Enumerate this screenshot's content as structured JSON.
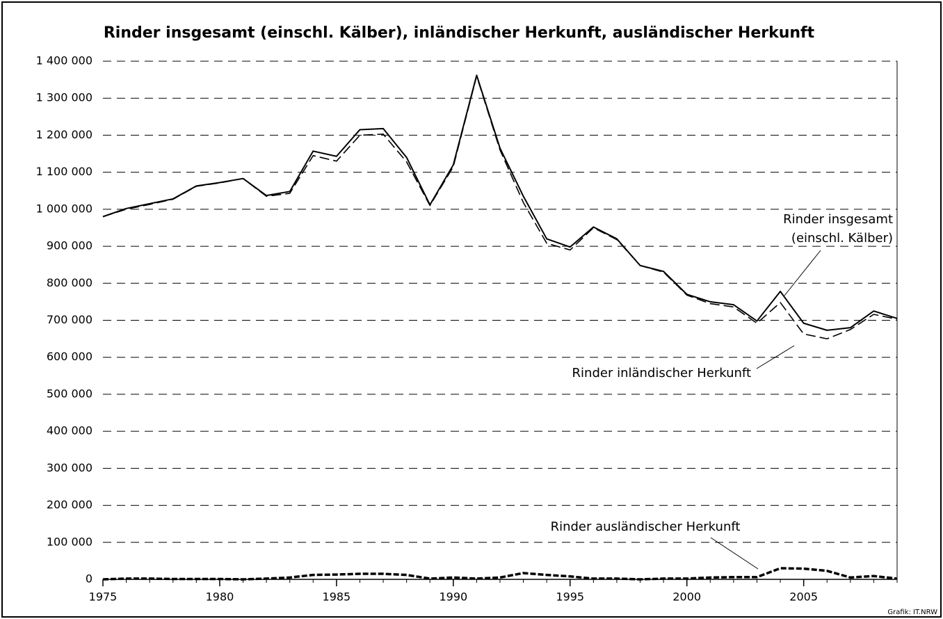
{
  "chart_data": {
    "type": "line",
    "title": "Rinder insgesamt (einschl. Kälber), inländischer Herkunft, ausländischer Herkunft",
    "x": [
      1975,
      1976,
      1977,
      1978,
      1979,
      1980,
      1981,
      1982,
      1983,
      1984,
      1985,
      1986,
      1987,
      1988,
      1989,
      1990,
      1991,
      1992,
      1993,
      1994,
      1995,
      1996,
      1997,
      1998,
      1999,
      2000,
      2001,
      2002,
      2003,
      2004,
      2005,
      2006,
      2007,
      2008,
      2009
    ],
    "series": [
      {
        "label": [
          "Rinder insgesamt",
          "(einschl. Kälber)"
        ],
        "color": "#000000",
        "style": "solid",
        "values": [
          980000,
          1002000,
          1015000,
          1028000,
          1063000,
          1072000,
          1083000,
          1037000,
          1048000,
          1157000,
          1143000,
          1215000,
          1218000,
          1140000,
          1012000,
          1120000,
          1362000,
          1165000,
          1035000,
          920000,
          898000,
          952000,
          920000,
          848000,
          832000,
          770000,
          750000,
          742000,
          698000,
          778000,
          692000,
          673000,
          680000,
          725000,
          705000
        ]
      },
      {
        "label": [
          "Rinder inländischer Herkunft"
        ],
        "color": "#000000",
        "style": "dashed",
        "values": [
          980000,
          1000000,
          1013000,
          1027000,
          1062000,
          1071000,
          1083000,
          1035000,
          1043000,
          1145000,
          1130000,
          1200000,
          1203000,
          1128000,
          1010000,
          1115000,
          1360000,
          1160000,
          1018000,
          908000,
          890000,
          950000,
          918000,
          848000,
          830000,
          768000,
          745000,
          736000,
          692000,
          748000,
          663000,
          650000,
          675000,
          716000,
          703000
        ]
      },
      {
        "label": [
          "Rinder ausländischer Herkunft"
        ],
        "color": "#000000",
        "style": "bold-dashed",
        "values": [
          0,
          2000,
          2000,
          1000,
          1000,
          1000,
          0,
          2000,
          5000,
          12000,
          13000,
          15000,
          15000,
          12000,
          2000,
          5000,
          2000,
          5000,
          17000,
          12000,
          8000,
          2000,
          2000,
          0,
          2000,
          2000,
          5000,
          6000,
          6000,
          30000,
          29000,
          23000,
          5000,
          9000,
          2000
        ]
      }
    ],
    "xlim": [
      1975,
      2009
    ],
    "xticks": [
      1975,
      1980,
      1985,
      1990,
      1995,
      2000,
      2005
    ],
    "ylim": [
      0,
      1400000
    ],
    "yticks": [
      0,
      {
        "value": 100000,
        "label": "100 000"
      },
      {
        "value": 200000,
        "label": "200 000"
      },
      {
        "value": 300000,
        "label": "300 000"
      },
      {
        "value": 400000,
        "label": "400 000"
      },
      {
        "value": 500000,
        "label": "500 000"
      },
      {
        "value": 600000,
        "label": "600 000"
      },
      {
        "value": 700000,
        "label": "700 000"
      },
      {
        "value": 800000,
        "label": "800 000"
      },
      {
        "value": 900000,
        "label": "900 000"
      },
      {
        "value": 1000000,
        "label": "1 000 000"
      },
      {
        "value": 1100000,
        "label": "1 100 000"
      },
      {
        "value": 1200000,
        "label": "1 200 000"
      },
      {
        "value": 1300000,
        "label": "1 300 000"
      },
      {
        "value": 1400000,
        "label": "1 400 000"
      }
    ],
    "grid": true,
    "source": "Grafik: IT.NRW"
  }
}
